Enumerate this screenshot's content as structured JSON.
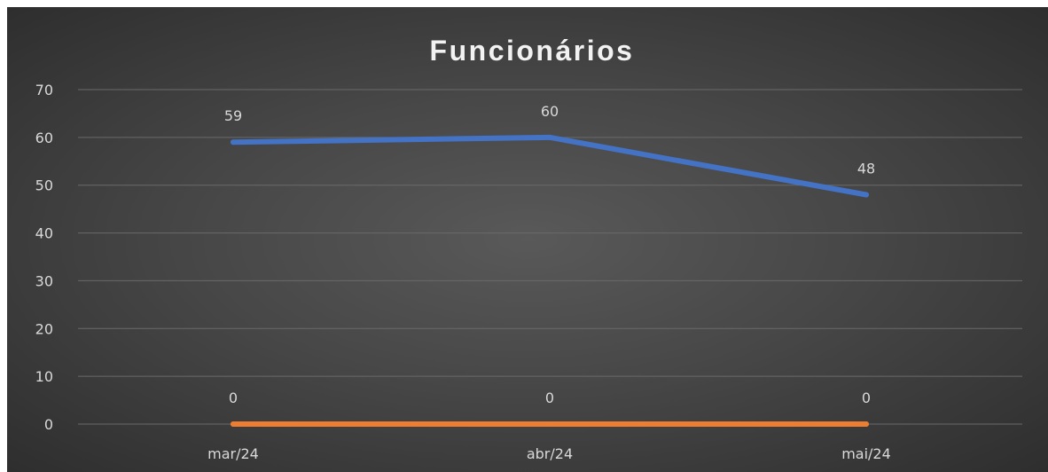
{
  "chart_data": {
    "type": "line",
    "title": "Funcionários",
    "categories": [
      "mar/24",
      "abr/24",
      "mai/24"
    ],
    "series": [
      {
        "values": [
          59,
          60,
          48
        ],
        "color": "#4472c4"
      },
      {
        "values": [
          0,
          0,
          0
        ],
        "color": "#ed7d31"
      }
    ],
    "ylim": [
      0,
      70
    ],
    "yticks": [
      0,
      10,
      20,
      30,
      40,
      50,
      60,
      70
    ],
    "grid": true,
    "data_labels": true,
    "background": "#404040"
  }
}
